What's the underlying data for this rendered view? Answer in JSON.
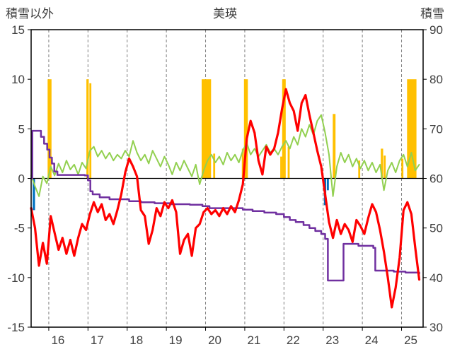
{
  "chart_data": {
    "type": "line",
    "title": "美瑛",
    "x_range": [
      15.55,
      25.55
    ],
    "x_ticks": [
      16,
      17,
      18,
      19,
      20,
      21,
      22,
      23,
      24,
      25
    ],
    "left_axis": {
      "title": "積雪以外",
      "min": -15,
      "max": 15,
      "ticks": [
        15,
        10,
        5,
        0,
        -5,
        -10,
        -15
      ]
    },
    "right_axis": {
      "title": "積雪",
      "min": 30,
      "max": 90,
      "ticks": [
        90,
        80,
        70,
        60,
        50,
        40,
        30
      ]
    },
    "grid": true,
    "legend": "none",
    "colors": {
      "axis": "#000000",
      "grid": "#808080",
      "text": "#404040",
      "background": "#ffffff"
    },
    "bar_series": [
      {
        "name": "orange-bars",
        "color": "#FFC000",
        "items": [
          {
            "x": 16.02,
            "v": 10,
            "w": 0.1
          },
          {
            "x": 16.99,
            "v": 10,
            "w": 0.06
          },
          {
            "x": 17.06,
            "v": 9.6,
            "w": 0.05
          },
          {
            "x": 20.02,
            "v": 10,
            "w": 0.24
          },
          {
            "x": 20.22,
            "v": 2.5,
            "w": 0.05
          },
          {
            "x": 20.95,
            "v": 3.0,
            "w": 0.05
          },
          {
            "x": 21.03,
            "v": 10,
            "w": 0.1
          },
          {
            "x": 21.93,
            "v": 2.2,
            "w": 0.05
          },
          {
            "x": 22.0,
            "v": 10,
            "w": 0.09
          },
          {
            "x": 22.12,
            "v": 3.2,
            "w": 0.05
          },
          {
            "x": 23.28,
            "v": 6.5,
            "w": 0.07
          },
          {
            "x": 23.92,
            "v": 1.8,
            "w": 0.05
          },
          {
            "x": 24.5,
            "v": 3.0,
            "w": 0.06
          },
          {
            "x": 24.57,
            "v": 2.3,
            "w": 0.05
          },
          {
            "x": 25.02,
            "v": 2.0,
            "w": 0.05
          },
          {
            "x": 25.26,
            "v": 10,
            "w": 0.24
          }
        ]
      },
      {
        "name": "blue-bars",
        "color": "#0070C0",
        "items": [
          {
            "x": 15.62,
            "v": -3.2,
            "w": 0.06
          },
          {
            "x": 23.05,
            "v": -2.7,
            "w": 0.06
          },
          {
            "x": 23.12,
            "v": -1.2,
            "w": 0.05
          }
        ]
      }
    ],
    "series": [
      {
        "name": "green-line",
        "color": "#92D050",
        "width": 2,
        "x_start": 15.55,
        "x_step": 0.1,
        "values": [
          0.3,
          -0.8,
          -1.8,
          0.2,
          -0.5,
          1.2,
          0.3,
          1.5,
          0.6,
          1.8,
          0.9,
          1.4,
          0.4,
          1.6,
          1.0,
          2.8,
          3.2,
          2.2,
          2.8,
          2.0,
          2.6,
          1.8,
          2.4,
          2.0,
          2.8,
          2.2,
          3.8,
          2.6,
          1.8,
          2.4,
          1.5,
          2.8,
          2.0,
          1.2,
          2.2,
          1.4,
          0.4,
          1.6,
          0.8,
          1.8,
          1.0,
          0.2,
          1.4,
          -0.6,
          0.8,
          1.8,
          2.4,
          1.6,
          2.2,
          1.4,
          2.6,
          1.8,
          2.4,
          1.6,
          2.8,
          3.6,
          2.4,
          3.0,
          2.2,
          2.8,
          3.4,
          2.6,
          3.0,
          2.4,
          3.2,
          3.8,
          3.0,
          4.2,
          3.4,
          5.0,
          4.2,
          5.4,
          4.4,
          5.8,
          6.4,
          4.6,
          2.4,
          -1.8,
          1.2,
          2.6,
          1.6,
          2.4,
          1.2,
          2.0,
          1.0,
          1.8,
          0.8,
          1.6,
          0.6,
          1.4,
          -1.2,
          0.8,
          1.6,
          0.6,
          1.8,
          2.4,
          1.2,
          2.6,
          0.8,
          1.4
        ]
      },
      {
        "name": "purple-step-line",
        "color": "#7030A0",
        "width": 2.5,
        "step": true,
        "points": [
          [
            15.55,
            0
          ],
          [
            15.58,
            4.8
          ],
          [
            15.75,
            4.8
          ],
          [
            15.8,
            4.2
          ],
          [
            15.88,
            3.5
          ],
          [
            15.96,
            2.9
          ],
          [
            16.02,
            2.1
          ],
          [
            16.08,
            1.5
          ],
          [
            16.14,
            0.7
          ],
          [
            16.22,
            0.35
          ],
          [
            16.92,
            0.3
          ],
          [
            17.0,
            -0.2
          ],
          [
            17.06,
            -1.3
          ],
          [
            17.12,
            -1.6
          ],
          [
            17.3,
            -1.9
          ],
          [
            17.55,
            -2.1
          ],
          [
            18.05,
            -2.3
          ],
          [
            18.35,
            -2.4
          ],
          [
            18.7,
            -2.5
          ],
          [
            19.1,
            -2.6
          ],
          [
            19.6,
            -2.65
          ],
          [
            19.92,
            -2.8
          ],
          [
            20.1,
            -3.0
          ],
          [
            20.95,
            -3.15
          ],
          [
            21.2,
            -3.3
          ],
          [
            21.5,
            -3.45
          ],
          [
            21.8,
            -3.6
          ],
          [
            22.0,
            -3.9
          ],
          [
            22.15,
            -4.2
          ],
          [
            22.3,
            -4.4
          ],
          [
            22.5,
            -4.7
          ],
          [
            22.65,
            -5.0
          ],
          [
            22.8,
            -5.3
          ],
          [
            22.95,
            -5.6
          ],
          [
            23.05,
            -6.1
          ],
          [
            23.12,
            -10.3
          ],
          [
            23.45,
            -10.3
          ],
          [
            23.52,
            -6.6
          ],
          [
            23.9,
            -6.8
          ],
          [
            24.28,
            -7.0
          ],
          [
            24.33,
            -9.3
          ],
          [
            24.8,
            -9.4
          ],
          [
            25.1,
            -9.5
          ],
          [
            25.45,
            -9.6
          ]
        ]
      },
      {
        "name": "red-line",
        "color": "#FF0000",
        "width": 3.2,
        "x_start": 15.55,
        "x_step": 0.1,
        "values": [
          -3.0,
          -5.0,
          -8.8,
          -6.5,
          -8.6,
          -3.8,
          -5.5,
          -7.2,
          -6.0,
          -7.6,
          -6.2,
          -7.8,
          -6.0,
          -4.6,
          -5.2,
          -3.6,
          -2.4,
          -3.4,
          -2.6,
          -4.2,
          -3.6,
          -4.6,
          -3.2,
          -1.6,
          0.6,
          2.0,
          1.2,
          0.2,
          -3.2,
          -3.8,
          -6.6,
          -5.2,
          -3.0,
          -3.8,
          -2.4,
          -3.0,
          -2.2,
          -3.4,
          -7.6,
          -6.2,
          -5.6,
          -7.8,
          -5.0,
          -4.6,
          -3.4,
          -3.0,
          -3.6,
          -3.2,
          -3.8,
          -3.0,
          -3.6,
          -2.8,
          -3.4,
          -2.2,
          -0.6,
          4.0,
          5.8,
          4.6,
          1.8,
          0.4,
          3.2,
          2.4,
          3.0,
          4.6,
          7.0,
          9.0,
          7.6,
          6.8,
          4.8,
          7.6,
          8.4,
          6.4,
          4.6,
          2.8,
          1.2,
          -1.6,
          -4.4,
          -6.0,
          -4.2,
          -5.6,
          -4.6,
          -5.2,
          -6.4,
          -4.2,
          -4.8,
          -5.6,
          -4.0,
          -2.6,
          -3.4,
          -5.2,
          -7.4,
          -10.0,
          -13.0,
          -11.0,
          -8.0,
          -3.2,
          -2.4,
          -3.6,
          -7.0,
          -10.2
        ]
      }
    ]
  }
}
